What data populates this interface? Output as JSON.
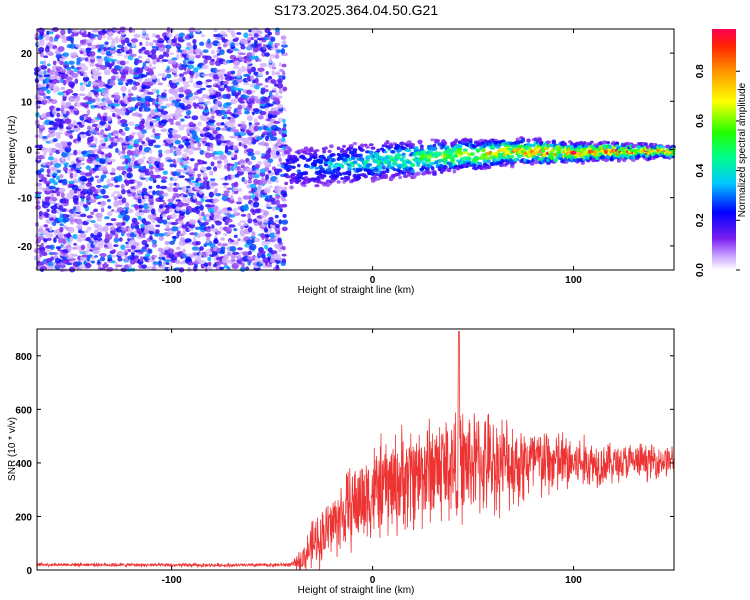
{
  "figure": {
    "title": "S173.2025.364.04.50.G21"
  },
  "chart_data": [
    {
      "type": "heatmap",
      "title": "S173.2025.364.04.50.G21",
      "xlabel": "Height of straight line (km)",
      "ylabel": "Frequency (Hz)",
      "xlim": [
        -167,
        150
      ],
      "ylim": [
        -25,
        25
      ],
      "x_ticks": [
        -100,
        0,
        100
      ],
      "x_tick_labels": [
        "-100",
        "0",
        "100"
      ],
      "y_ticks": [
        -20,
        -10,
        0,
        10,
        20
      ],
      "y_tick_labels": [
        "-20",
        "-10",
        "0",
        "10",
        "20"
      ],
      "colorbar": {
        "label": "Normalized spectral amplitude",
        "range": [
          0,
          0.97
        ],
        "ticks": [
          0,
          0.2,
          0.4,
          0.6,
          0.8
        ],
        "tick_labels": [
          "0.0",
          "0.2",
          "0.4",
          "0.6",
          "0.8"
        ],
        "colormap": [
          "#ffffff",
          "#b05cff",
          "#6a00e0",
          "#0000ff",
          "#00e5ff",
          "#00ff00",
          "#ffff00",
          "#ff8c00",
          "#ff0000"
        ]
      },
      "regions": [
        {
          "x_range": [
            -167,
            -43
          ],
          "description": "broadband noise",
          "level": [
            0.05,
            0.3
          ]
        },
        {
          "x_range": [
            -43,
            150
          ],
          "description": "signal line",
          "frequency_center": [
            -5,
            -1
          ],
          "level": [
            0.2,
            0.95
          ]
        }
      ]
    },
    {
      "type": "line",
      "xlabel": "Height of straight line (km)",
      "ylabel": "SNR (10 * v/v)",
      "xlim": [
        -167,
        150
      ],
      "ylim": [
        0,
        900
      ],
      "x_ticks": [
        -100,
        0,
        100
      ],
      "x_tick_labels": [
        "-100",
        "0",
        "100"
      ],
      "y_ticks": [
        0,
        200,
        400,
        600,
        800
      ],
      "y_tick_labels": [
        "0",
        "200",
        "400",
        "600",
        "800"
      ],
      "color": "#ee3333",
      "envelope": {
        "x": [
          -167,
          -140,
          -100,
          -60,
          -40,
          -35,
          -30,
          -20,
          -10,
          0,
          10,
          20,
          30,
          40,
          50,
          60,
          80,
          100,
          120,
          150
        ],
        "mean": [
          20,
          20,
          18,
          18,
          20,
          40,
          90,
          170,
          240,
          290,
          320,
          350,
          380,
          390,
          400,
          400,
          400,
          400,
          400,
          410
        ],
        "spread": [
          8,
          8,
          8,
          8,
          10,
          60,
          110,
          150,
          190,
          220,
          230,
          240,
          250,
          260,
          240,
          220,
          180,
          130,
          90,
          70
        ]
      },
      "peak": {
        "x": 43,
        "y": 890
      }
    }
  ]
}
